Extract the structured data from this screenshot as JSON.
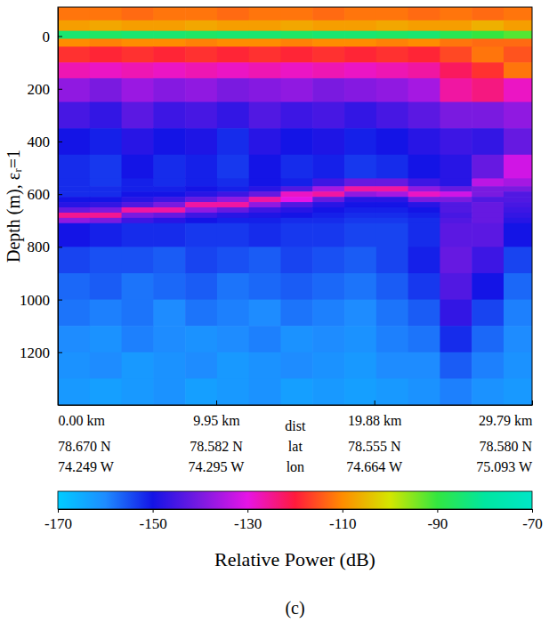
{
  "chart_data": {
    "type": "heatmap",
    "ylabel": "Depth (m), εᵣ=1",
    "xlim": [
      0,
      29.79
    ],
    "ylim": [
      -110,
      1400
    ],
    "xticks": [
      {
        "value": 0,
        "label": "0.00 km"
      },
      {
        "value": 9.95,
        "label": "9.95 km"
      },
      {
        "value": 19.88,
        "label": "19.88 km"
      },
      {
        "value": 29.79,
        "label": "29.79 km"
      }
    ],
    "lat_labels": [
      "78.670 N",
      "78.582 N",
      "78.555 N",
      "78.580 N"
    ],
    "lon_labels": [
      "74.249 W",
      "74.295 W",
      "74.664 W",
      "75.093 W"
    ],
    "row_labels": [
      "dist",
      "lat",
      "lon"
    ],
    "yticks": [
      0,
      200,
      400,
      600,
      800,
      1000,
      1200
    ],
    "x_edges": [
      0,
      2,
      4,
      6,
      8,
      10,
      12,
      14,
      16,
      18,
      20,
      22,
      24,
      26,
      28,
      29.79
    ],
    "y_edges": [
      -110,
      -60,
      -20,
      10,
      40,
      100,
      160,
      250,
      350,
      450,
      540,
      570,
      590,
      610,
      630,
      650,
      670,
      690,
      710,
      800,
      900,
      1000,
      1100,
      1200,
      1300,
      1400
    ],
    "cells": [
      [
        -112,
        -112,
        -113,
        -112,
        -112,
        -113,
        -112,
        -112,
        -113,
        -112,
        -112,
        -113,
        -112,
        -113,
        -112
      ],
      [
        -108,
        -107,
        -108,
        -108,
        -107,
        -108,
        -108,
        -107,
        -108,
        -108,
        -107,
        -108,
        -108,
        -106,
        -108
      ],
      [
        -85,
        -86,
        -85,
        -85,
        -86,
        -85,
        -85,
        -86,
        -85,
        -85,
        -86,
        -85,
        -88,
        -90,
        -92
      ],
      [
        -110,
        -111,
        -110,
        -110,
        -111,
        -110,
        -110,
        -111,
        -110,
        -110,
        -111,
        -110,
        -112,
        -113,
        -113
      ],
      [
        -118,
        -119,
        -118,
        -119,
        -118,
        -119,
        -118,
        -119,
        -118,
        -119,
        -118,
        -119,
        -116,
        -112,
        -115
      ],
      [
        -127,
        -128,
        -127,
        -128,
        -127,
        -128,
        -127,
        -128,
        -127,
        -128,
        -127,
        -126,
        -122,
        -118,
        -112
      ],
      [
        -138,
        -140,
        -137,
        -139,
        -138,
        -140,
        -139,
        -138,
        -140,
        -139,
        -138,
        -136,
        -126,
        -124,
        -128
      ],
      [
        -145,
        -147,
        -143,
        -146,
        -145,
        -147,
        -144,
        -146,
        -145,
        -147,
        -145,
        -143,
        -140,
        -140,
        -138
      ],
      [
        -150,
        -151,
        -148,
        -150,
        -149,
        -152,
        -148,
        -150,
        -149,
        -151,
        -150,
        -148,
        -146,
        -147,
        -142
      ],
      [
        -152,
        -153,
        -150,
        -152,
        -151,
        -153,
        -150,
        -152,
        -151,
        -153,
        -152,
        -150,
        -148,
        -142,
        -132
      ],
      [
        -152,
        -153,
        -151,
        -152,
        -151,
        -152,
        -150,
        -151,
        -146,
        -142,
        -142,
        -146,
        -148,
        -134,
        -136
      ],
      [
        -152,
        -152,
        -151,
        -151,
        -150,
        -151,
        -148,
        -144,
        -136,
        -126,
        -126,
        -138,
        -142,
        -140,
        -140
      ],
      [
        -152,
        -152,
        -150,
        -150,
        -148,
        -146,
        -142,
        -128,
        -126,
        -138,
        -136,
        -128,
        -132,
        -140,
        -144
      ],
      [
        -150,
        -150,
        -148,
        -146,
        -142,
        -138,
        -126,
        -130,
        -142,
        -148,
        -148,
        -140,
        -140,
        -144,
        -144
      ],
      [
        -148,
        -147,
        -144,
        -140,
        -126,
        -126,
        -138,
        -144,
        -148,
        -150,
        -150,
        -148,
        -144,
        -142,
        -145
      ],
      [
        -142,
        -140,
        -126,
        -126,
        -138,
        -142,
        -146,
        -148,
        -150,
        -151,
        -151,
        -150,
        -144,
        -142,
        -146
      ],
      [
        -125,
        -125,
        -140,
        -142,
        -146,
        -148,
        -149,
        -150,
        -151,
        -152,
        -152,
        -151,
        -145,
        -142,
        -147
      ],
      [
        -138,
        -140,
        -146,
        -148,
        -150,
        -151,
        -151,
        -152,
        -152,
        -153,
        -153,
        -152,
        -144,
        -142,
        -148
      ],
      [
        -150,
        -151,
        -152,
        -152,
        -153,
        -153,
        -152,
        -153,
        -153,
        -154,
        -154,
        -152,
        -143,
        -143,
        -150
      ],
      [
        -154,
        -155,
        -155,
        -156,
        -154,
        -155,
        -156,
        -154,
        -155,
        -156,
        -154,
        -151,
        -142,
        -146,
        -154
      ],
      [
        -157,
        -156,
        -158,
        -157,
        -156,
        -158,
        -157,
        -156,
        -157,
        -158,
        -156,
        -153,
        -144,
        -150,
        -157
      ],
      [
        -158,
        -159,
        -158,
        -160,
        -158,
        -159,
        -160,
        -158,
        -159,
        -160,
        -158,
        -156,
        -147,
        -154,
        -159
      ],
      [
        -160,
        -161,
        -159,
        -160,
        -161,
        -160,
        -159,
        -161,
        -160,
        -161,
        -159,
        -158,
        -152,
        -157,
        -160
      ],
      [
        -161,
        -160,
        -162,
        -161,
        -160,
        -162,
        -161,
        -160,
        -161,
        -162,
        -160,
        -160,
        -156,
        -159,
        -161
      ],
      [
        -162,
        -163,
        -162,
        -161,
        -163,
        -162,
        -161,
        -163,
        -162,
        -163,
        -162,
        -161,
        -159,
        -161,
        -162
      ]
    ],
    "colorbar": {
      "range": [
        -170,
        -70
      ],
      "ticks": [
        -170,
        -150,
        -130,
        -110,
        -90,
        -70
      ],
      "label": "Relative Power (dB)",
      "colors": [
        "#00ccff",
        "#1e8cff",
        "#1414e6",
        "#7a1ae0",
        "#e614e6",
        "#ff1a3c",
        "#ff8c00",
        "#d4e600",
        "#33e640",
        "#00e6a0",
        "#00e6c8"
      ]
    },
    "panel_label": "(c)"
  }
}
